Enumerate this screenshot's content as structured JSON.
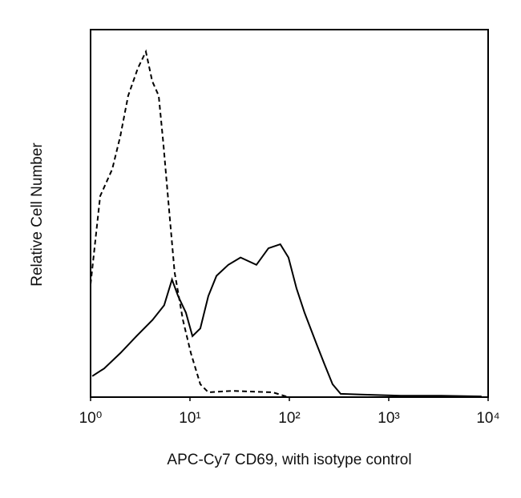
{
  "chart_data": {
    "type": "line",
    "xlabel": "APC-Cy7 CD69, with isotype control",
    "ylabel": "Relative Cell Number",
    "xscale": "log",
    "xlim": [
      1,
      10000
    ],
    "xticks": [
      {
        "value": 1,
        "label": "10⁰"
      },
      {
        "value": 10,
        "label": "10¹"
      },
      {
        "value": 100,
        "label": "10²"
      },
      {
        "value": 1000,
        "label": "10³"
      },
      {
        "value": 10000,
        "label": "10⁴"
      }
    ],
    "ylim": [
      0,
      100
    ],
    "series": [
      {
        "color": "#000000",
        "line_style": "dashed",
        "x": [
          1.0,
          1.25,
          1.65,
          1.99,
          2.39,
          2.99,
          3.6,
          4.17,
          4.85,
          5.4,
          6.05,
          7.0,
          8.5,
          10.2,
          12.7,
          15.3,
          26.7,
          68,
          98
        ],
        "values": [
          30.7,
          54.7,
          62,
          71,
          82,
          89.5,
          94,
          86,
          82,
          69,
          53.6,
          34,
          21,
          12,
          3.5,
          1.3,
          1.7,
          1.3,
          0
        ]
      },
      {
        "color": "#000000",
        "line_style": "solid",
        "x": [
          1.04,
          1.37,
          2.0,
          2.9,
          4.2,
          5.5,
          6.6,
          7.6,
          9.1,
          10.6,
          12.7,
          15.3,
          18.5,
          24.3,
          32.3,
          46.6,
          61.6,
          81,
          98,
          118,
          142,
          188,
          226,
          272,
          328,
          522,
          1320,
          3370,
          8590
        ],
        "values": [
          5.7,
          7.8,
          12,
          16.6,
          21,
          25,
          32,
          27.5,
          23,
          16.6,
          18.7,
          27.5,
          33,
          36,
          38,
          36,
          40.5,
          41.6,
          38,
          29.6,
          23,
          14.4,
          8.9,
          3.5,
          0.9,
          0.7,
          0.4,
          0.4,
          0.2
        ]
      }
    ]
  }
}
